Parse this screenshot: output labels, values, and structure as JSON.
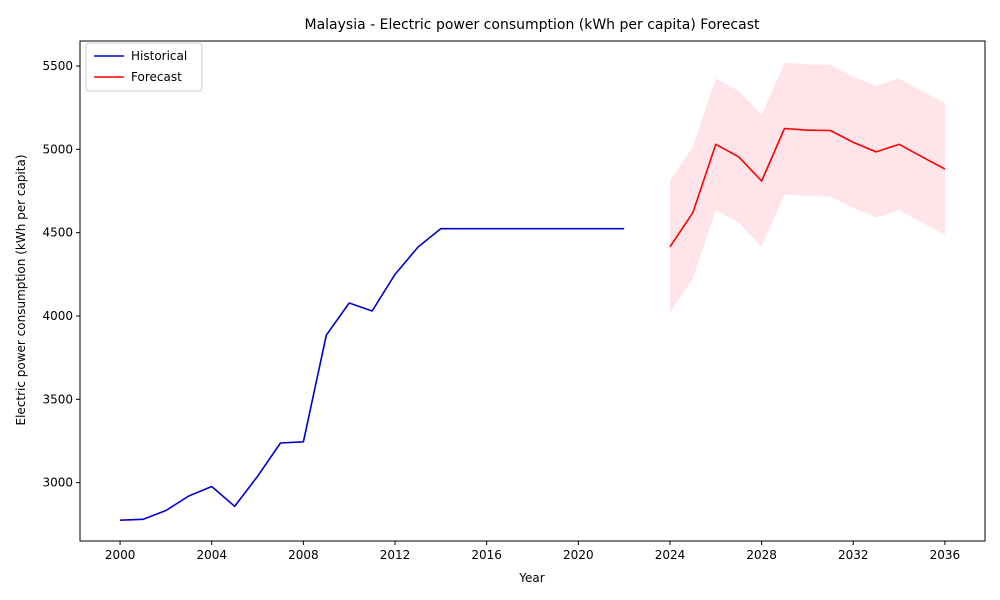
{
  "chart_data": {
    "type": "line",
    "title": "Malaysia - Electric power consumption (kWh per capita) Forecast",
    "xlabel": "Year",
    "ylabel": "Electric power consumption (kWh per capita)",
    "xlim": [
      1998.25,
      2037.75
    ],
    "ylim": [
      2650,
      5650
    ],
    "x_ticks": [
      2000,
      2004,
      2008,
      2012,
      2016,
      2020,
      2024,
      2028,
      2032,
      2036
    ],
    "y_ticks": [
      3000,
      3500,
      4000,
      4500,
      5000,
      5500
    ],
    "grid": false,
    "legend_position": "upper-left",
    "series": [
      {
        "name": "Historical",
        "color": "#0000cc",
        "x": [
          2000,
          2001,
          2002,
          2003,
          2004,
          2005,
          2006,
          2007,
          2008,
          2009,
          2010,
          2011,
          2012,
          2013,
          2014,
          2015,
          2016,
          2017,
          2018,
          2019,
          2020,
          2021,
          2022
        ],
        "y": [
          2775,
          2780,
          2833,
          2920,
          2977,
          2858,
          3038,
          3238,
          3245,
          3885,
          4078,
          4030,
          4250,
          4413,
          4524,
          4524,
          4524,
          4524,
          4524,
          4524,
          4524,
          4524,
          4524
        ]
      },
      {
        "name": "Forecast",
        "color": "#ff0000",
        "x": [
          2024,
          2025,
          2026,
          2027,
          2028,
          2029,
          2030,
          2031,
          2032,
          2033,
          2034,
          2035,
          2036
        ],
        "y": [
          4415,
          4620,
          5030,
          4955,
          4810,
          5125,
          5115,
          5113,
          5042,
          4985,
          5030,
          4955,
          4882
        ],
        "lower": [
          4020,
          4225,
          4635,
          4560,
          4415,
          4730,
          4720,
          4718,
          4647,
          4590,
          4635,
          4560,
          4487
        ],
        "upper": [
          4810,
          5015,
          5425,
          5350,
          5205,
          5520,
          5510,
          5508,
          5437,
          5380,
          5425,
          5350,
          5277
        ],
        "band_color": "#ffe4ea"
      }
    ]
  }
}
